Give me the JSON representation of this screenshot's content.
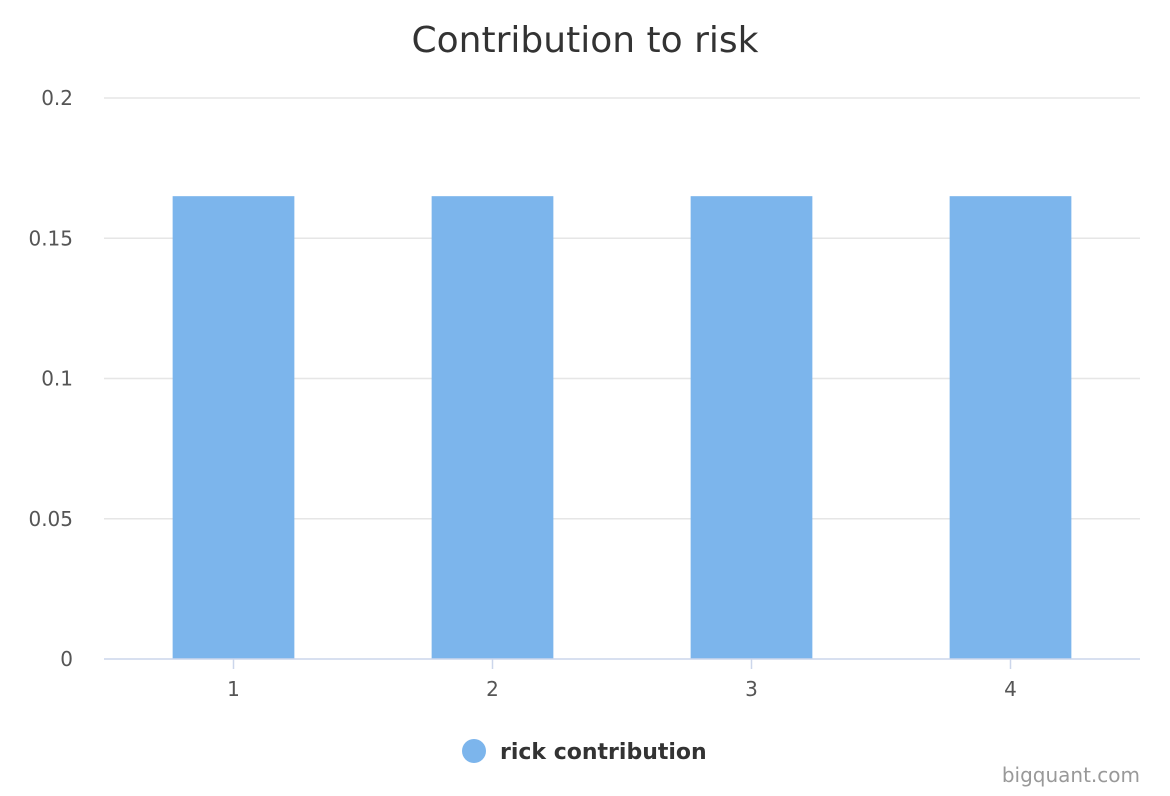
{
  "chart_data": {
    "type": "bar",
    "title": "Contribution to risk",
    "xlabel": "",
    "ylabel": "",
    "categories": [
      "1",
      "2",
      "3",
      "4"
    ],
    "series": [
      {
        "name": "rick contribution",
        "values": [
          0.165,
          0.165,
          0.165,
          0.165
        ],
        "color": "#7cb5ec"
      }
    ],
    "ylim": [
      0,
      0.2
    ],
    "yticks": [
      0,
      0.05,
      0.1,
      0.15,
      0.2
    ],
    "ytick_labels": [
      "0",
      "0.05",
      "0.1",
      "0.15",
      "0.2"
    ],
    "grid": true,
    "legend_position": "bottom-center"
  },
  "credit": "bigquant.com",
  "colors": {
    "grid": "#e6e6e6",
    "axis": "#ccd6eb",
    "bar": "#7cb5ec"
  }
}
